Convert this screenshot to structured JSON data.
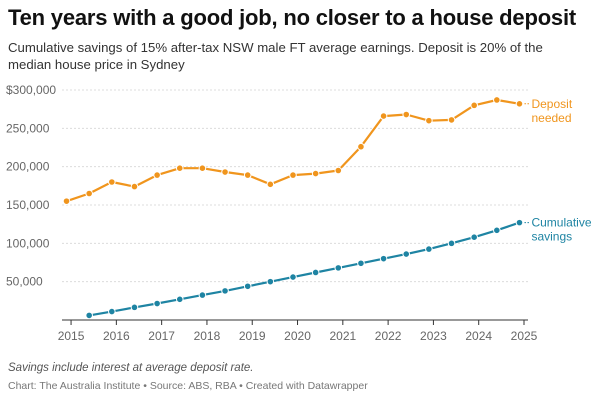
{
  "title": "Ten years with a good job, no closer to a house deposit",
  "subtitle": "Cumulative savings of 15% after-tax NSW male FT average earnings. Deposit is 20% of the median house price in Sydney",
  "note": "Savings include interest at average deposit rate.",
  "footer": {
    "chart_by": "Chart: The Australia Institute",
    "sep1": " • ",
    "source": "Source: ABS, RBA",
    "sep2": " • ",
    "created": "Created with Datawrapper"
  },
  "chart_data": {
    "type": "line",
    "xlim": [
      2014.8,
      2025.0
    ],
    "ylim": [
      0,
      300000
    ],
    "x_ticks": [
      2015,
      2016,
      2017,
      2018,
      2019,
      2020,
      2021,
      2022,
      2023,
      2024,
      2025
    ],
    "x_tick_labels": [
      "2015",
      "2016",
      "2017",
      "2018",
      "2019",
      "2020",
      "2021",
      "2022",
      "2023",
      "2024",
      "2025"
    ],
    "y_ticks": [
      50000,
      100000,
      150000,
      200000,
      250000,
      300000
    ],
    "y_tick_labels": [
      "50,000",
      "100,000",
      "150,000",
      "200,000",
      "250,000",
      "$300,000"
    ],
    "grid": true,
    "series": [
      {
        "name": "Deposit needed",
        "label_lines": [
          "Deposit",
          "needed"
        ],
        "color": "#f0951d",
        "x": [
          2014.9,
          2015.4,
          2015.9,
          2016.4,
          2016.9,
          2017.4,
          2017.9,
          2018.4,
          2018.9,
          2019.4,
          2019.9,
          2020.4,
          2020.9,
          2021.4,
          2021.9,
          2022.4,
          2022.9,
          2023.4,
          2023.9,
          2024.4,
          2024.9
        ],
        "values": [
          155000,
          165000,
          180000,
          174000,
          189000,
          198000,
          198000,
          193000,
          189000,
          177000,
          189000,
          191000,
          195000,
          226000,
          266000,
          268000,
          260000,
          261000,
          280000,
          287000,
          282000
        ]
      },
      {
        "name": "Cumulative savings",
        "label_lines": [
          "Cumulative",
          "savings"
        ],
        "color": "#1e84a3",
        "x": [
          2015.4,
          2015.9,
          2016.4,
          2016.9,
          2017.4,
          2017.9,
          2018.4,
          2018.9,
          2019.4,
          2019.9,
          2020.4,
          2020.9,
          2021.4,
          2021.9,
          2022.4,
          2022.9,
          2023.4,
          2023.9,
          2024.4,
          2024.9
        ],
        "values": [
          6000,
          11000,
          16500,
          21500,
          27000,
          32500,
          38000,
          44000,
          50000,
          56000,
          62000,
          68000,
          74000,
          80000,
          86000,
          92500,
          100000,
          108000,
          117000,
          127000
        ]
      }
    ]
  }
}
